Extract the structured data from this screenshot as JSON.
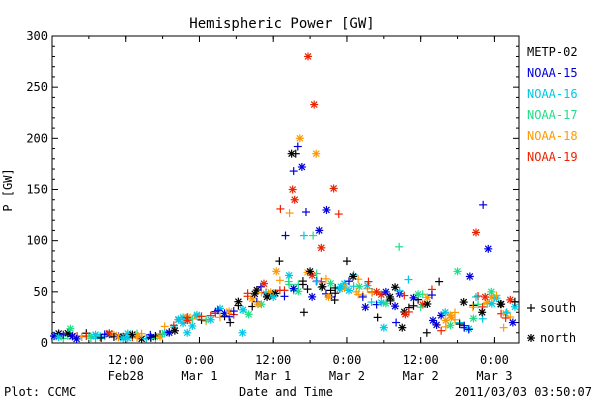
{
  "chart_data": {
    "type": "scatter",
    "title": "Hemispheric Power [GW]",
    "ylabel": "P [GW]",
    "xlabel": "Date and Time",
    "xlim": [
      "2011-02-28 00:00",
      "2011-03-03 04:00"
    ],
    "ylim": [
      0,
      300
    ],
    "yticks": [
      0,
      50,
      100,
      150,
      200,
      250,
      300
    ],
    "xticks": [
      {
        "time": "2011-02-28 12:00",
        "line1": "12:00",
        "line2": "Feb28"
      },
      {
        "time": "2011-03-01 00:00",
        "line1": "0:00",
        "line2": "Mar 1"
      },
      {
        "time": "2011-03-01 12:00",
        "line1": "12:00",
        "line2": "Mar 1"
      },
      {
        "time": "2011-03-02 00:00",
        "line1": "0:00",
        "line2": "Mar 2"
      },
      {
        "time": "2011-03-02 12:00",
        "line1": "12:00",
        "line2": "Mar 2"
      },
      {
        "time": "2011-03-03 00:00",
        "line1": "0:00",
        "line2": "Mar 3"
      }
    ],
    "grid": false,
    "legend_position": "right",
    "marker_legend": [
      {
        "symbol": "+",
        "label": "south"
      },
      {
        "symbol": "*",
        "label": "north"
      }
    ],
    "series": [
      {
        "name": "METP-02",
        "color": "#000000",
        "points": [
          {
            "t": "2011-03-01 15:00",
            "v": 185,
            "m": "*"
          },
          {
            "t": "2011-03-01 15:40",
            "v": 185,
            "m": "+"
          },
          {
            "t": "2011-03-01 13:00",
            "v": 80,
            "m": "+"
          },
          {
            "t": "2011-03-01 18:00",
            "v": 70,
            "m": "*"
          },
          {
            "t": "2011-03-01 20:00",
            "v": 55,
            "m": "*"
          },
          {
            "t": "2011-03-02 00:00",
            "v": 80,
            "m": "+"
          },
          {
            "t": "2011-03-02 01:00",
            "v": 65,
            "m": "*"
          },
          {
            "t": "2011-03-02 07:00",
            "v": 45,
            "m": "*"
          },
          {
            "t": "2011-03-02 15:00",
            "v": 60,
            "m": "+"
          },
          {
            "t": "2011-03-02 19:00",
            "v": 40,
            "m": "*"
          },
          {
            "t": "2011-03-03 01:00",
            "v": 38,
            "m": "*"
          },
          {
            "t": "2011-02-28 08:00",
            "v": 5,
            "m": "+"
          },
          {
            "t": "2011-02-28 20:00",
            "v": 12,
            "m": "*"
          },
          {
            "t": "2011-03-01 05:00",
            "v": 20,
            "m": "+"
          },
          {
            "t": "2011-03-01 09:00",
            "v": 48,
            "m": "*"
          },
          {
            "t": "2011-03-01 11:00",
            "v": 45,
            "m": "*"
          },
          {
            "t": "2011-03-01 17:00",
            "v": 30,
            "m": "+"
          },
          {
            "t": "2011-03-01 22:00",
            "v": 42,
            "m": "+"
          },
          {
            "t": "2011-03-02 05:00",
            "v": 25,
            "m": "+"
          },
          {
            "t": "2011-03-02 09:00",
            "v": 15,
            "m": "*"
          },
          {
            "t": "2011-03-02 13:00",
            "v": 10,
            "m": "+"
          },
          {
            "t": "2011-03-02 22:00",
            "v": 30,
            "m": "*"
          }
        ]
      },
      {
        "name": "NOAA-15",
        "color": "#0000dd",
        "points": [
          {
            "t": "2011-03-01 16:00",
            "v": 192,
            "m": "+"
          },
          {
            "t": "2011-03-01 16:40",
            "v": 172,
            "m": "*"
          },
          {
            "t": "2011-03-01 15:20",
            "v": 168,
            "m": "+"
          },
          {
            "t": "2011-03-01 17:20",
            "v": 128,
            "m": "+"
          },
          {
            "t": "2011-03-01 19:30",
            "v": 110,
            "m": "*"
          },
          {
            "t": "2011-03-01 20:40",
            "v": 130,
            "m": "*"
          },
          {
            "t": "2011-03-01 14:00",
            "v": 105,
            "m": "+"
          },
          {
            "t": "2011-03-02 22:10",
            "v": 135,
            "m": "+"
          },
          {
            "t": "2011-03-02 23:00",
            "v": 92,
            "m": "*"
          },
          {
            "t": "2011-03-02 20:00",
            "v": 65,
            "m": "*"
          },
          {
            "t": "2011-03-03 03:00",
            "v": 20,
            "m": "*"
          },
          {
            "t": "2011-03-01 03:00",
            "v": 32,
            "m": "+"
          },
          {
            "t": "2011-03-01 10:00",
            "v": 55,
            "m": "+"
          },
          {
            "t": "2011-03-01 21:30",
            "v": 45,
            "m": "+"
          },
          {
            "t": "2011-03-02 03:00",
            "v": 35,
            "m": "*"
          },
          {
            "t": "2011-03-02 08:00",
            "v": 20,
            "m": "+"
          },
          {
            "t": "2011-03-02 14:00",
            "v": 22,
            "m": "*"
          },
          {
            "t": "2011-02-28 16:00",
            "v": 8,
            "m": "+"
          },
          {
            "t": "2011-02-28 04:00",
            "v": 4,
            "m": "*"
          }
        ]
      },
      {
        "name": "NOAA-16",
        "color": "#00c8e6",
        "points": [
          {
            "t": "2011-03-01 17:00",
            "v": 105,
            "m": "+"
          },
          {
            "t": "2011-03-01 12:00",
            "v": 45,
            "m": "*"
          },
          {
            "t": "2011-03-01 19:00",
            "v": 60,
            "m": "+"
          },
          {
            "t": "2011-03-01 23:00",
            "v": 55,
            "m": "*"
          },
          {
            "t": "2011-03-02 04:00",
            "v": 40,
            "m": "+"
          },
          {
            "t": "2011-03-02 10:00",
            "v": 62,
            "m": "+"
          },
          {
            "t": "2011-03-02 16:00",
            "v": 30,
            "m": "*"
          },
          {
            "t": "2011-03-02 21:00",
            "v": 45,
            "m": "+"
          },
          {
            "t": "2011-03-01 07:00",
            "v": 10,
            "m": "*"
          },
          {
            "t": "2011-02-28 12:00",
            "v": 6,
            "m": "+"
          },
          {
            "t": "2011-02-28 22:00",
            "v": 10,
            "m": "*"
          },
          {
            "t": "2011-03-02 06:00",
            "v": 15,
            "m": "*"
          },
          {
            "t": "2011-03-03 02:00",
            "v": 30,
            "m": "+"
          }
        ]
      },
      {
        "name": "NOAA-17",
        "color": "#22dd88",
        "points": [
          {
            "t": "2011-03-01 18:30",
            "v": 105,
            "m": "+"
          },
          {
            "t": "2011-03-02 08:30",
            "v": 94,
            "m": "+"
          },
          {
            "t": "2011-03-02 18:00",
            "v": 70,
            "m": "*"
          },
          {
            "t": "2011-03-01 14:30",
            "v": 60,
            "m": "+"
          },
          {
            "t": "2011-03-02 02:00",
            "v": 55,
            "m": "*"
          },
          {
            "t": "2011-03-02 12:00",
            "v": 35,
            "m": "+"
          },
          {
            "t": "2011-02-28 03:00",
            "v": 14,
            "m": "*"
          },
          {
            "t": "2011-02-28 18:00",
            "v": 9,
            "m": "+"
          },
          {
            "t": "2011-03-01 08:00",
            "v": 28,
            "m": "*"
          },
          {
            "t": "2011-03-02 23:30",
            "v": 50,
            "m": "*"
          }
        ]
      },
      {
        "name": "NOAA-18",
        "color": "#ff9900",
        "points": [
          {
            "t": "2011-03-01 16:20",
            "v": 200,
            "m": "*"
          },
          {
            "t": "2011-03-01 19:00",
            "v": 185,
            "m": "*"
          },
          {
            "t": "2011-03-01 14:40",
            "v": 127,
            "m": "+"
          },
          {
            "t": "2011-03-01 12:30",
            "v": 70,
            "m": "*"
          },
          {
            "t": "2011-03-01 21:00",
            "v": 45,
            "m": "*"
          },
          {
            "t": "2011-03-02 01:30",
            "v": 50,
            "m": "+"
          },
          {
            "t": "2011-03-02 17:00",
            "v": 25,
            "m": "*"
          },
          {
            "t": "2011-03-02 20:30",
            "v": 35,
            "m": "+"
          },
          {
            "t": "2011-03-01 09:30",
            "v": 38,
            "m": "*"
          },
          {
            "t": "2011-03-03 01:30",
            "v": 15,
            "m": "+"
          },
          {
            "t": "2011-02-28 14:00",
            "v": 7,
            "m": "*"
          }
        ]
      },
      {
        "name": "NOAA-19",
        "color": "#ee2200",
        "points": [
          {
            "t": "2011-03-01 17:40",
            "v": 280,
            "m": "*"
          },
          {
            "t": "2011-03-01 18:40",
            "v": 233,
            "m": "*"
          },
          {
            "t": "2011-03-01 15:10",
            "v": 150,
            "m": "*"
          },
          {
            "t": "2011-03-01 15:30",
            "v": 140,
            "m": "*"
          },
          {
            "t": "2011-03-01 13:10",
            "v": 131,
            "m": "+"
          },
          {
            "t": "2011-03-01 21:50",
            "v": 151,
            "m": "*"
          },
          {
            "t": "2011-03-01 22:40",
            "v": 126,
            "m": "+"
          },
          {
            "t": "2011-03-01 19:50",
            "v": 93,
            "m": "*"
          },
          {
            "t": "2011-03-02 21:00",
            "v": 108,
            "m": "*"
          },
          {
            "t": "2011-02-28 22:00",
            "v": 25,
            "m": "+"
          },
          {
            "t": "2011-03-01 10:30",
            "v": 58,
            "m": "*"
          },
          {
            "t": "2011-03-02 03:30",
            "v": 60,
            "m": "+"
          },
          {
            "t": "2011-03-02 09:30",
            "v": 28,
            "m": "*"
          },
          {
            "t": "2011-03-02 22:30",
            "v": 45,
            "m": "*"
          }
        ]
      }
    ]
  },
  "footer": {
    "plot_credit": "Plot: CCMC",
    "timestamp": "2011/03/03 03:50:07"
  }
}
